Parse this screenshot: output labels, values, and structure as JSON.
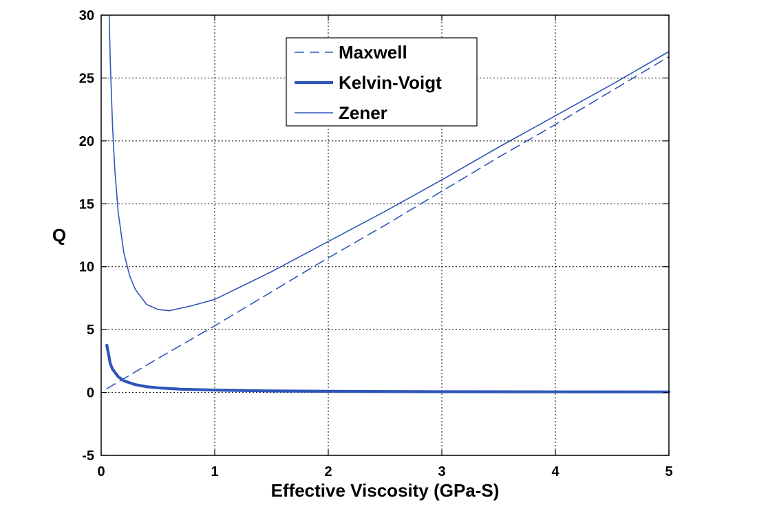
{
  "chart_data": {
    "type": "line",
    "title": "",
    "xlabel": "Effective Viscosity (GPa-S)",
    "ylabel": "Q",
    "xlim": [
      0,
      5
    ],
    "ylim": [
      -5,
      30
    ],
    "xticks": [
      "0",
      "1",
      "2",
      "3",
      "4",
      "5"
    ],
    "yticks": [
      "-5",
      "0",
      "5",
      "10",
      "15",
      "20",
      "25",
      "30"
    ],
    "grid": true,
    "legend_position": "top-center",
    "line_color": "#2f55b8",
    "series": [
      {
        "name": "Maxwell",
        "style": "dashed",
        "x": [
          0.05,
          0.5,
          1.0,
          1.5,
          2.0,
          2.5,
          3.0,
          3.5,
          4.0,
          4.5,
          5.0
        ],
        "y": [
          0.3,
          2.7,
          5.3,
          8.0,
          10.7,
          13.3,
          16.0,
          18.7,
          21.3,
          24.0,
          26.7
        ]
      },
      {
        "name": "Kelvin-Voigt",
        "style": "thick",
        "x": [
          0.05,
          0.08,
          0.1,
          0.15,
          0.2,
          0.3,
          0.4,
          0.5,
          0.7,
          1.0,
          1.5,
          2.0,
          3.0,
          4.0,
          5.0
        ],
        "y": [
          3.75,
          2.3,
          1.85,
          1.25,
          0.93,
          0.62,
          0.46,
          0.37,
          0.26,
          0.19,
          0.12,
          0.09,
          0.06,
          0.05,
          0.04
        ]
      },
      {
        "name": "Zener",
        "style": "thin",
        "x": [
          0.07,
          0.08,
          0.1,
          0.12,
          0.15,
          0.2,
          0.25,
          0.3,
          0.4,
          0.5,
          0.6,
          0.7,
          0.8,
          1.0,
          1.25,
          1.5,
          2.0,
          2.5,
          3.0,
          3.5,
          4.0,
          4.5,
          5.0
        ],
        "y": [
          30.0,
          26.4,
          21.2,
          17.7,
          14.3,
          11.1,
          9.3,
          8.2,
          7.0,
          6.6,
          6.5,
          6.7,
          6.9,
          7.4,
          8.5,
          9.6,
          12.0,
          14.4,
          16.9,
          19.5,
          22.0,
          24.5,
          27.1
        ]
      }
    ]
  }
}
